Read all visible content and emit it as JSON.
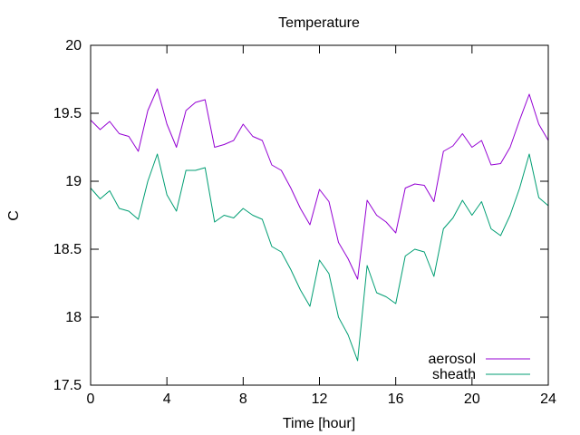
{
  "chart_data": {
    "type": "line",
    "title": "Temperature",
    "xlabel": "Time [hour]",
    "ylabel": "C",
    "xlim": [
      0,
      24
    ],
    "ylim": [
      17.5,
      20
    ],
    "xticks": [
      0,
      4,
      8,
      12,
      16,
      20,
      24
    ],
    "xtick_labels": [
      "0",
      "4",
      "8",
      "12",
      "16",
      "20",
      "24"
    ],
    "yticks": [
      17.5,
      18,
      18.5,
      19,
      19.5,
      20
    ],
    "ytick_labels": [
      "17.5",
      "18",
      "18.5",
      "19",
      "19.5",
      "20"
    ],
    "grid": false,
    "legend_position": "bottom-right",
    "x": [
      0,
      0.5,
      1,
      1.5,
      2,
      2.5,
      3,
      3.5,
      4,
      4.5,
      5,
      5.5,
      6,
      6.5,
      7,
      7.5,
      8,
      8.5,
      9,
      9.5,
      10,
      10.5,
      11,
      11.5,
      12,
      12.5,
      13,
      13.5,
      14,
      14.5,
      15,
      15.5,
      16,
      16.5,
      17,
      17.5,
      18,
      18.5,
      19,
      19.5,
      20,
      20.5,
      21,
      21.5,
      22,
      22.5,
      23,
      23.5,
      24
    ],
    "series": [
      {
        "name": "aerosol",
        "color": "#9400d3",
        "values": [
          19.45,
          19.38,
          19.44,
          19.35,
          19.33,
          19.22,
          19.52,
          19.68,
          19.42,
          19.25,
          19.52,
          19.58,
          19.6,
          19.25,
          19.27,
          19.3,
          19.42,
          19.33,
          19.3,
          19.12,
          19.08,
          18.95,
          18.8,
          18.68,
          18.94,
          18.85,
          18.55,
          18.43,
          18.28,
          18.86,
          18.75,
          18.7,
          18.62,
          18.95,
          18.98,
          18.97,
          18.85,
          19.22,
          19.26,
          19.35,
          19.25,
          19.3,
          19.12,
          19.13,
          19.25,
          19.45,
          19.64,
          19.42,
          19.3
        ]
      },
      {
        "name": "sheath",
        "color": "#009e73",
        "values": [
          18.95,
          18.87,
          18.93,
          18.8,
          18.78,
          18.72,
          19.0,
          19.2,
          18.9,
          18.78,
          19.08,
          19.08,
          19.1,
          18.7,
          18.75,
          18.73,
          18.8,
          18.75,
          18.72,
          18.52,
          18.48,
          18.35,
          18.2,
          18.08,
          18.42,
          18.32,
          18.0,
          17.87,
          17.68,
          18.38,
          18.18,
          18.15,
          18.1,
          18.45,
          18.5,
          18.48,
          18.3,
          18.65,
          18.73,
          18.86,
          18.75,
          18.85,
          18.65,
          18.6,
          18.75,
          18.95,
          19.2,
          18.88,
          18.82
        ]
      }
    ]
  }
}
